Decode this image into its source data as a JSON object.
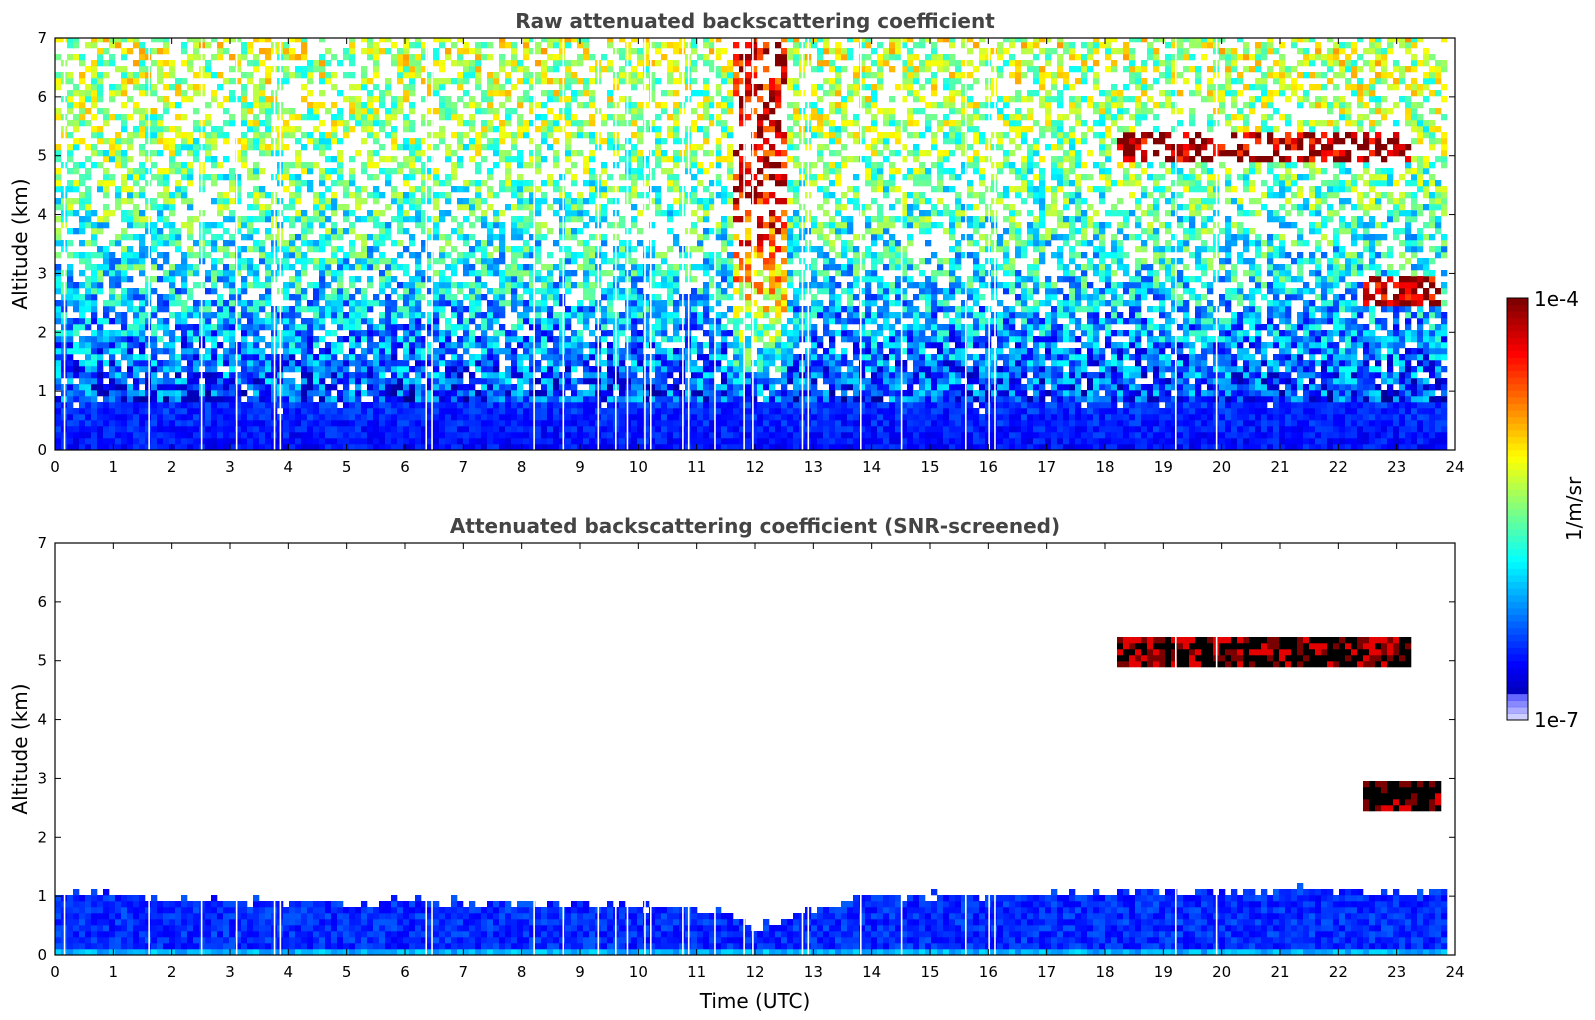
{
  "chart_data": [
    {
      "type": "heatmap",
      "title": "Raw attenuated backscattering coefficient",
      "xlabel": "",
      "ylabel": "Altitude (km)",
      "xlim": [
        0,
        24
      ],
      "ylim": [
        0,
        7
      ],
      "x_ticks": [
        "0",
        "1",
        "2",
        "3",
        "4",
        "5",
        "6",
        "7",
        "8",
        "9",
        "10",
        "11",
        "12",
        "13",
        "14",
        "15",
        "16",
        "17",
        "18",
        "19",
        "20",
        "21",
        "22",
        "23",
        "24"
      ],
      "y_ticks": [
        "0",
        "1",
        "2",
        "3",
        "4",
        "5",
        "6",
        "7"
      ],
      "data_end_hour": 23.8,
      "background_profile": [
        {
          "altitude_km": 0.0,
          "log10_beta": -6.6
        },
        {
          "altitude_km": 0.7,
          "log10_beta": -6.5
        },
        {
          "altitude_km": 1.5,
          "log10_beta": -6.3
        },
        {
          "altitude_km": 3.0,
          "log10_beta": -5.9
        },
        {
          "altitude_km": 5.0,
          "log10_beta": -5.5
        },
        {
          "altitude_km": 7.0,
          "log10_beta": -5.3
        }
      ],
      "noisy_period": {
        "hour_start": 11.6,
        "hour_end": 12.6,
        "log10_beta": -4.3
      },
      "cloud_layers": [
        {
          "hour_start": 18.2,
          "hour_end": 23.2,
          "altitude_top_km": 5.4,
          "altitude_base_km": 4.9,
          "log10_beta": -4.1
        },
        {
          "hour_start": 22.4,
          "hour_end": 23.8,
          "altitude_top_km": 3.0,
          "altitude_base_km": 2.4,
          "log10_beta": -4.1
        }
      ],
      "data_gaps_hours": [
        0.15,
        1.6,
        2.5,
        3.1,
        3.75,
        3.85,
        6.35,
        6.45,
        8.2,
        8.7,
        9.3,
        9.6,
        9.8,
        10.1,
        10.2,
        10.75,
        10.85,
        11.3,
        11.8,
        11.95,
        12.8,
        12.9,
        13.8,
        14.5,
        15.6,
        16.0,
        16.1,
        19.2,
        19.9
      ]
    },
    {
      "type": "heatmap",
      "title": "Attenuated backscattering coefficient (SNR-screened)",
      "xlabel": "Time (UTC)",
      "ylabel": "Altitude (km)",
      "xlim": [
        0,
        24
      ],
      "ylim": [
        0,
        7
      ],
      "x_ticks": [
        "0",
        "1",
        "2",
        "3",
        "4",
        "5",
        "6",
        "7",
        "8",
        "9",
        "10",
        "11",
        "12",
        "13",
        "14",
        "15",
        "16",
        "17",
        "18",
        "19",
        "20",
        "21",
        "22",
        "23",
        "24"
      ],
      "y_ticks": [
        "0",
        "1",
        "2",
        "3",
        "4",
        "5",
        "6",
        "7"
      ],
      "data_end_hour": 23.8,
      "boundary_layer_top": [
        {
          "hour": 0,
          "altitude_km": 1.05
        },
        {
          "hour": 2,
          "altitude_km": 0.95
        },
        {
          "hour": 4,
          "altitude_km": 0.9
        },
        {
          "hour": 6,
          "altitude_km": 0.9
        },
        {
          "hour": 8,
          "altitude_km": 0.9
        },
        {
          "hour": 10,
          "altitude_km": 0.85
        },
        {
          "hour": 11.5,
          "altitude_km": 0.7
        },
        {
          "hour": 12.1,
          "altitude_km": 0.45
        },
        {
          "hour": 12.8,
          "altitude_km": 0.75
        },
        {
          "hour": 14,
          "altitude_km": 1.0
        },
        {
          "hour": 16,
          "altitude_km": 1.0
        },
        {
          "hour": 18,
          "altitude_km": 1.05
        },
        {
          "hour": 20,
          "altitude_km": 1.1
        },
        {
          "hour": 22,
          "altitude_km": 1.1
        },
        {
          "hour": 23.8,
          "altitude_km": 1.1
        }
      ],
      "cloud_layers": [
        {
          "hour_start": 18.2,
          "hour_end": 23.2,
          "altitude_top_km": 5.4,
          "altitude_base_km": 4.9
        },
        {
          "hour_start": 22.4,
          "hour_end": 23.8,
          "altitude_top_km": 3.0,
          "altitude_base_km": 2.4
        }
      ],
      "data_gaps_hours": [
        0.15,
        1.6,
        2.5,
        3.1,
        3.75,
        3.85,
        6.35,
        6.45,
        8.2,
        8.7,
        9.3,
        9.6,
        9.8,
        10.1,
        10.2,
        10.75,
        10.85,
        11.3,
        11.8,
        11.95,
        12.8,
        12.9,
        13.8,
        14.5,
        15.6,
        16.0,
        16.1,
        19.2,
        19.9
      ]
    }
  ],
  "colorbar": {
    "label": "1/m/sr",
    "scale": "log",
    "min_label": "1e-7",
    "max_label": "1e-4",
    "min": 1e-07,
    "max": 0.0001,
    "colormap": "jet"
  }
}
